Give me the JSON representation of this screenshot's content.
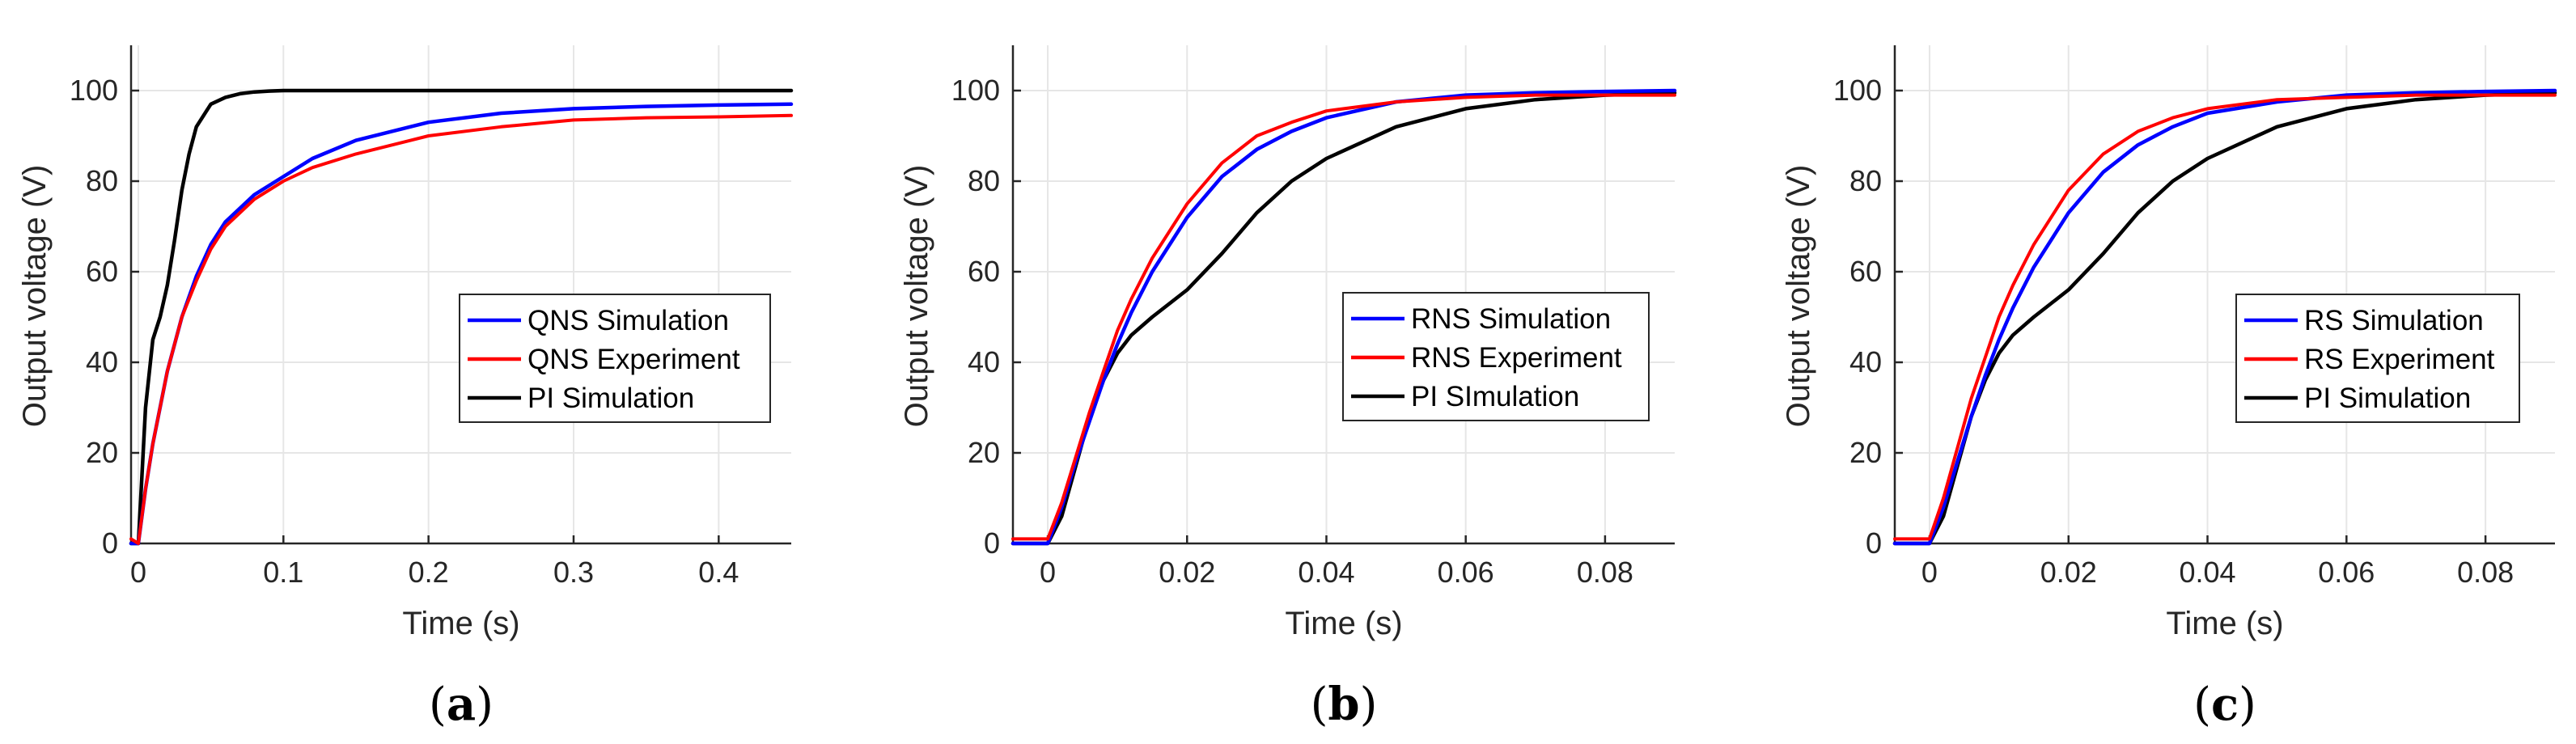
{
  "colors": {
    "simulation": "#0000ff",
    "experiment": "#ff0000",
    "pi": "#000000",
    "grid": "#e6e6e6",
    "axis": "#262626"
  },
  "chart_data": [
    {
      "panel": "a",
      "type": "line",
      "title": "",
      "xlabel": "Time (s)",
      "ylabel": "Output voltage (V)",
      "xlim": [
        -0.005,
        0.45
      ],
      "ylim": [
        0,
        110
      ],
      "xticks": [
        0,
        0.1,
        0.2,
        0.3,
        0.4
      ],
      "xtick_labels": [
        "0",
        "0.1",
        "0.2",
        "0.3",
        "0.4"
      ],
      "yticks": [
        0,
        20,
        40,
        60,
        80,
        100
      ],
      "ytick_labels": [
        "0",
        "20",
        "40",
        "60",
        "80",
        "100"
      ],
      "grid": true,
      "legend": "center-right",
      "series": [
        {
          "name": "QNS Simulation",
          "color_key": "simulation",
          "x": [
            -0.005,
            0,
            0.005,
            0.01,
            0.02,
            0.03,
            0.04,
            0.05,
            0.06,
            0.08,
            0.1,
            0.12,
            0.15,
            0.2,
            0.25,
            0.3,
            0.35,
            0.4,
            0.45
          ],
          "y": [
            0,
            0,
            12,
            22,
            38,
            50,
            59,
            66,
            71,
            77,
            81,
            85,
            89,
            93,
            95,
            96,
            96.5,
            96.8,
            97
          ]
        },
        {
          "name": "QNS Experiment",
          "color_key": "experiment",
          "x": [
            -0.005,
            0,
            0.005,
            0.01,
            0.02,
            0.03,
            0.04,
            0.05,
            0.06,
            0.08,
            0.1,
            0.12,
            0.15,
            0.2,
            0.25,
            0.3,
            0.35,
            0.4,
            0.45
          ],
          "y": [
            1,
            0,
            12,
            22,
            38,
            50,
            58,
            65,
            70,
            76,
            80,
            83,
            86,
            90,
            92,
            93.5,
            94,
            94.2,
            94.5
          ]
        },
        {
          "name": "PI Simulation",
          "color_key": "pi",
          "x": [
            -0.005,
            0,
            0.005,
            0.01,
            0.015,
            0.02,
            0.025,
            0.03,
            0.035,
            0.04,
            0.05,
            0.06,
            0.07,
            0.08,
            0.09,
            0.1,
            0.45
          ],
          "y": [
            0,
            0,
            30,
            45,
            50,
            57,
            67,
            78,
            86,
            92,
            97,
            98.5,
            99.3,
            99.7,
            99.9,
            100,
            100
          ]
        }
      ],
      "panel_label": "(a)"
    },
    {
      "panel": "b",
      "type": "line",
      "title": "",
      "xlabel": "Time (s)",
      "ylabel": "Output voltage (V)",
      "xlim": [
        -0.005,
        0.09
      ],
      "ylim": [
        0,
        110
      ],
      "xticks": [
        0,
        0.02,
        0.04,
        0.06,
        0.08
      ],
      "xtick_labels": [
        "0",
        "0.02",
        "0.04",
        "0.06",
        "0.08"
      ],
      "yticks": [
        0,
        20,
        40,
        60,
        80,
        100
      ],
      "ytick_labels": [
        "0",
        "20",
        "40",
        "60",
        "80",
        "100"
      ],
      "grid": true,
      "legend": "center-right",
      "series": [
        {
          "name": "RNS Simulation",
          "color_key": "simulation",
          "x": [
            -0.005,
            0,
            0.002,
            0.004,
            0.006,
            0.008,
            0.01,
            0.012,
            0.015,
            0.02,
            0.025,
            0.03,
            0.035,
            0.04,
            0.05,
            0.06,
            0.07,
            0.08,
            0.09
          ],
          "y": [
            0,
            0,
            8,
            18,
            27,
            36,
            44,
            51,
            60,
            72,
            81,
            87,
            91,
            94,
            97.5,
            99,
            99.5,
            99.8,
            100
          ]
        },
        {
          "name": "RNS Experiment",
          "color_key": "experiment",
          "x": [
            -0.005,
            0,
            0.002,
            0.004,
            0.006,
            0.008,
            0.01,
            0.012,
            0.015,
            0.02,
            0.025,
            0.03,
            0.035,
            0.04,
            0.05,
            0.06,
            0.07,
            0.08,
            0.09
          ],
          "y": [
            1,
            1,
            9,
            19,
            29,
            38,
            47,
            54,
            63,
            75,
            84,
            90,
            93,
            95.5,
            97.5,
            98.5,
            99,
            99,
            99
          ]
        },
        {
          "name": "PI SImulation",
          "color_key": "pi",
          "x": [
            -0.005,
            0,
            0.002,
            0.004,
            0.006,
            0.008,
            0.01,
            0.012,
            0.015,
            0.02,
            0.025,
            0.03,
            0.035,
            0.04,
            0.05,
            0.06,
            0.07,
            0.08,
            0.09
          ],
          "y": [
            0,
            0,
            6,
            17,
            28,
            36,
            42,
            46,
            50,
            56,
            64,
            73,
            80,
            85,
            92,
            96,
            98,
            99,
            99.5
          ]
        }
      ],
      "panel_label": "(b)"
    },
    {
      "panel": "c",
      "type": "line",
      "title": "",
      "xlabel": "Time (s)",
      "ylabel": "Output voltage (V)",
      "xlim": [
        -0.005,
        0.09
      ],
      "ylim": [
        0,
        110
      ],
      "xticks": [
        0,
        0.02,
        0.04,
        0.06,
        0.08
      ],
      "xtick_labels": [
        "0",
        "0.02",
        "0.04",
        "0.06",
        "0.08"
      ],
      "yticks": [
        0,
        20,
        40,
        60,
        80,
        100
      ],
      "ytick_labels": [
        "0",
        "20",
        "40",
        "60",
        "80",
        "100"
      ],
      "grid": true,
      "legend": "center-right",
      "series": [
        {
          "name": "RS Simulation",
          "color_key": "simulation",
          "x": [
            -0.005,
            0,
            0.002,
            0.004,
            0.006,
            0.008,
            0.01,
            0.012,
            0.015,
            0.02,
            0.025,
            0.03,
            0.035,
            0.04,
            0.05,
            0.06,
            0.07,
            0.08,
            0.09
          ],
          "y": [
            0,
            0,
            8,
            18,
            28,
            37,
            45,
            52,
            61,
            73,
            82,
            88,
            92,
            95,
            97.5,
            99,
            99.5,
            99.8,
            100
          ]
        },
        {
          "name": "RS Experiment",
          "color_key": "experiment",
          "x": [
            -0.005,
            0,
            0.002,
            0.004,
            0.006,
            0.008,
            0.01,
            0.012,
            0.015,
            0.02,
            0.025,
            0.03,
            0.035,
            0.04,
            0.05,
            0.06,
            0.07,
            0.08,
            0.09
          ],
          "y": [
            1,
            1,
            10,
            21,
            32,
            41,
            50,
            57,
            66,
            78,
            86,
            91,
            94,
            96,
            98,
            98.5,
            99,
            99,
            99
          ]
        },
        {
          "name": "PI Simulation",
          "color_key": "pi",
          "x": [
            -0.005,
            0,
            0.002,
            0.004,
            0.006,
            0.008,
            0.01,
            0.012,
            0.015,
            0.02,
            0.025,
            0.03,
            0.035,
            0.04,
            0.05,
            0.06,
            0.07,
            0.08,
            0.09
          ],
          "y": [
            0,
            0,
            6,
            17,
            28,
            36,
            42,
            46,
            50,
            56,
            64,
            73,
            80,
            85,
            92,
            96,
            98,
            99,
            99.5
          ]
        }
      ],
      "panel_label": "(c)"
    }
  ]
}
